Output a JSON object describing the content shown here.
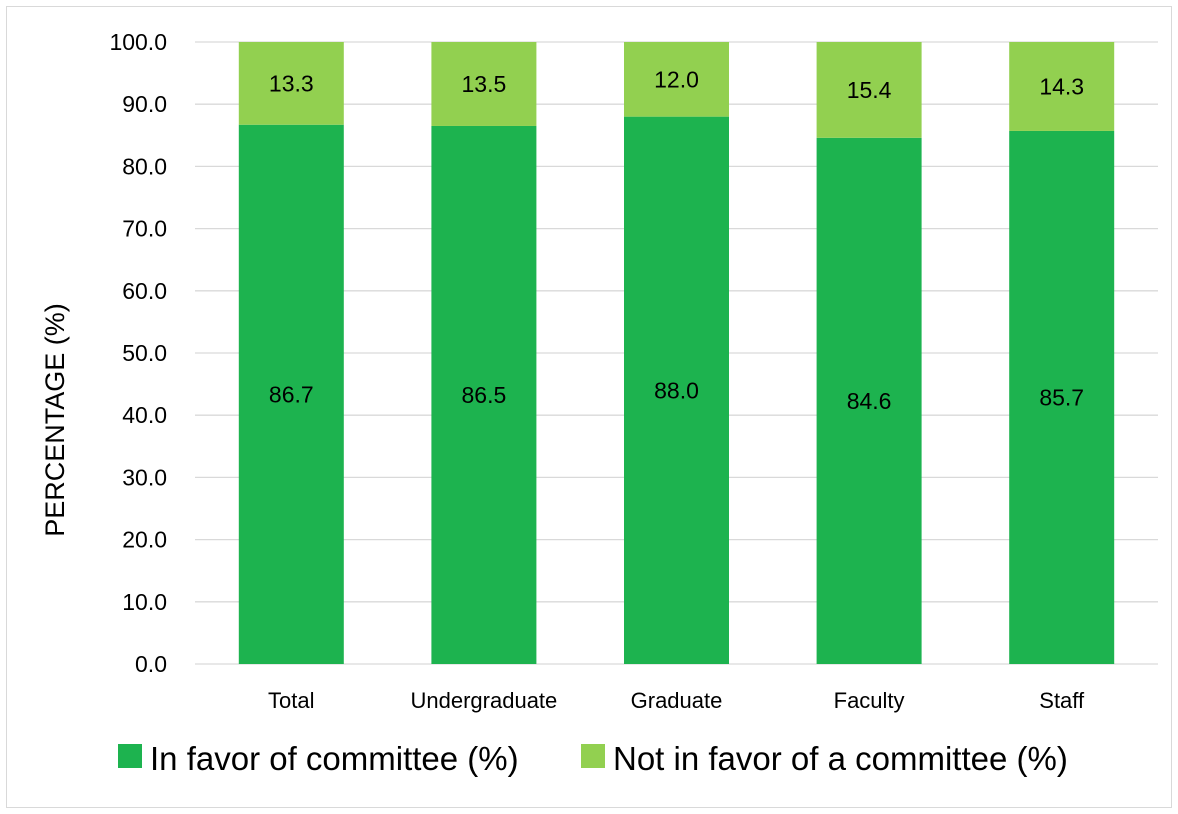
{
  "chart_data": {
    "type": "bar",
    "stacked": true,
    "categories": [
      "Total",
      "Undergraduate",
      "Graduate",
      "Faculty",
      "Staff"
    ],
    "series": [
      {
        "name": "In favor of committee (%)",
        "color": "#1db34f",
        "values": [
          86.7,
          86.5,
          88.0,
          84.6,
          85.7
        ]
      },
      {
        "name": "Not in favor of a committee (%)",
        "color": "#92d050",
        "values": [
          13.3,
          13.5,
          12.0,
          15.4,
          14.3
        ]
      }
    ],
    "ylabel": "PERCENTAGE (%)",
    "xlabel": "",
    "ylim": [
      0,
      100
    ],
    "yticks": [
      "0.0",
      "10.0",
      "20.0",
      "30.0",
      "40.0",
      "50.0",
      "60.0",
      "70.0",
      "80.0",
      "90.0",
      "100.0"
    ],
    "grid": true,
    "legend_position": "bottom"
  }
}
